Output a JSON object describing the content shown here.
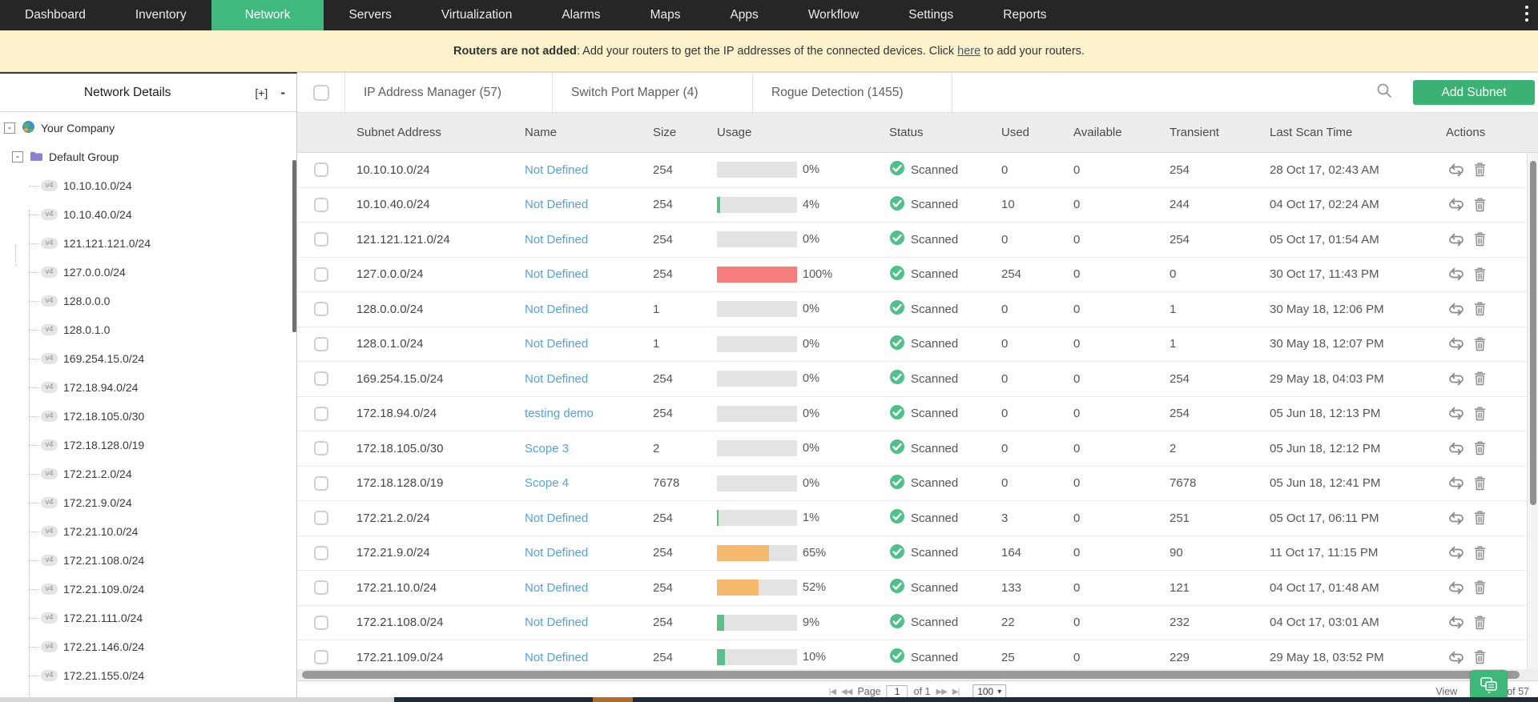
{
  "nav": {
    "items": [
      "Dashboard",
      "Inventory",
      "Network",
      "Servers",
      "Virtualization",
      "Alarms",
      "Maps",
      "Apps",
      "Workflow",
      "Settings",
      "Reports"
    ],
    "active_index": 2
  },
  "banner": {
    "bold_text": "Routers are not added",
    "mid_text": ": Add your routers to get the IP addresses of the connected devices. Click",
    "link_label": "here",
    "suffix_text": "to add your routers."
  },
  "sidebar": {
    "title": "Network Details",
    "expand_all_label": "[+]",
    "collapse_all_label": "-",
    "collapse_glyph": "-",
    "company": "Your Company",
    "group": "Default Group",
    "subnet_badge": "v4",
    "subnets": [
      "10.10.10.0/24",
      "10.10.40.0/24",
      "121.121.121.0/24",
      "127.0.0.0/24",
      "128.0.0.0",
      "128.0.1.0",
      "169.254.15.0/24",
      "172.18.94.0/24",
      "172.18.105.0/30",
      "172.18.128.0/19",
      "172.21.2.0/24",
      "172.21.9.0/24",
      "172.21.10.0/24",
      "172.21.108.0/24",
      "172.21.109.0/24",
      "172.21.111.0/24",
      "172.21.146.0/24",
      "172.21.155.0/24"
    ]
  },
  "toolbar": {
    "tabs": [
      "IP Address Manager (57)",
      "Switch Port Mapper (4)",
      "Rogue Detection (1455)"
    ],
    "add_subnet_label": "Add Subnet"
  },
  "table": {
    "columns": [
      "Subnet Address",
      "Name",
      "Size",
      "Usage",
      "Status",
      "Used",
      "Available",
      "Transient",
      "Last Scan Time",
      "Actions"
    ],
    "rows": [
      {
        "subnet": "10.10.10.0/24",
        "name": "Not Defined",
        "size": "254",
        "usage_pct": 0,
        "usage_label": "0%",
        "status": "Scanned",
        "used": "0",
        "available": "0",
        "transient": "254",
        "last_scan": "28 Oct 17, 02:43 AM"
      },
      {
        "subnet": "10.10.40.0/24",
        "name": "Not Defined",
        "size": "254",
        "usage_pct": 4,
        "usage_label": "4%",
        "status": "Scanned",
        "used": "10",
        "available": "0",
        "transient": "244",
        "last_scan": "04 Oct 17, 02:24 AM"
      },
      {
        "subnet": "121.121.121.0/24",
        "name": "Not Defined",
        "size": "254",
        "usage_pct": 0,
        "usage_label": "0%",
        "status": "Scanned",
        "used": "0",
        "available": "0",
        "transient": "254",
        "last_scan": "05 Oct 17, 01:54 AM"
      },
      {
        "subnet": "127.0.0.0/24",
        "name": "Not Defined",
        "size": "254",
        "usage_pct": 100,
        "usage_label": "100%",
        "status": "Scanned",
        "used": "254",
        "available": "0",
        "transient": "0",
        "last_scan": "30 Oct 17, 11:43 PM"
      },
      {
        "subnet": "128.0.0.0/24",
        "name": "Not Defined",
        "size": "1",
        "usage_pct": 0,
        "usage_label": "0%",
        "status": "Scanned",
        "used": "0",
        "available": "0",
        "transient": "1",
        "last_scan": "30 May 18, 12:06 PM"
      },
      {
        "subnet": "128.0.1.0/24",
        "name": "Not Defined",
        "size": "1",
        "usage_pct": 0,
        "usage_label": "0%",
        "status": "Scanned",
        "used": "0",
        "available": "0",
        "transient": "1",
        "last_scan": "30 May 18, 12:07 PM"
      },
      {
        "subnet": "169.254.15.0/24",
        "name": "Not Defined",
        "size": "254",
        "usage_pct": 0,
        "usage_label": "0%",
        "status": "Scanned",
        "used": "0",
        "available": "0",
        "transient": "254",
        "last_scan": "29 May 18, 04:03 PM"
      },
      {
        "subnet": "172.18.94.0/24",
        "name": "testing demo",
        "size": "254",
        "usage_pct": 0,
        "usage_label": "0%",
        "status": "Scanned",
        "used": "0",
        "available": "0",
        "transient": "254",
        "last_scan": "05 Jun 18, 12:13 PM"
      },
      {
        "subnet": "172.18.105.0/30",
        "name": "Scope 3",
        "size": "2",
        "usage_pct": 0,
        "usage_label": "0%",
        "status": "Scanned",
        "used": "0",
        "available": "0",
        "transient": "2",
        "last_scan": "05 Jun 18, 12:12 PM"
      },
      {
        "subnet": "172.18.128.0/19",
        "name": "Scope 4",
        "size": "7678",
        "usage_pct": 0,
        "usage_label": "0%",
        "status": "Scanned",
        "used": "0",
        "available": "0",
        "transient": "7678",
        "last_scan": "05 Jun 18, 12:41 PM"
      },
      {
        "subnet": "172.21.2.0/24",
        "name": "Not Defined",
        "size": "254",
        "usage_pct": 1,
        "usage_label": "1%",
        "status": "Scanned",
        "used": "3",
        "available": "0",
        "transient": "251",
        "last_scan": "05 Oct 17, 06:11 PM"
      },
      {
        "subnet": "172.21.9.0/24",
        "name": "Not Defined",
        "size": "254",
        "usage_pct": 65,
        "usage_label": "65%",
        "status": "Scanned",
        "used": "164",
        "available": "0",
        "transient": "90",
        "last_scan": "11 Oct 17, 11:15 PM"
      },
      {
        "subnet": "172.21.10.0/24",
        "name": "Not Defined",
        "size": "254",
        "usage_pct": 52,
        "usage_label": "52%",
        "status": "Scanned",
        "used": "133",
        "available": "0",
        "transient": "121",
        "last_scan": "04 Oct 17, 01:48 AM"
      },
      {
        "subnet": "172.21.108.0/24",
        "name": "Not Defined",
        "size": "254",
        "usage_pct": 9,
        "usage_label": "9%",
        "status": "Scanned",
        "used": "22",
        "available": "0",
        "transient": "232",
        "last_scan": "04 Oct 17, 03:01 AM"
      },
      {
        "subnet": "172.21.109.0/24",
        "name": "Not Defined",
        "size": "254",
        "usage_pct": 10,
        "usage_label": "10%",
        "status": "Scanned",
        "used": "25",
        "available": "0",
        "transient": "229",
        "last_scan": "29 May 18, 03:52 PM"
      }
    ]
  },
  "pagination": {
    "first_icon": "|◀",
    "prev_icon": "◀◀",
    "page_label": "Page",
    "page_value": "1",
    "of_label": "of 1",
    "next_icon": "▶▶",
    "last_icon": "▶|",
    "page_size_value": "100",
    "right_prefix": "View",
    "right_suffix": "of 57"
  },
  "colors": {
    "nav_active_green": "#3fb97e",
    "accent_green": "#3bb273",
    "status_green": "#4fc08a",
    "usage_green": "#5abf8a",
    "usage_orange": "#f6b86d",
    "usage_red": "#f77d7d",
    "link_blue": "#55a1dd"
  }
}
